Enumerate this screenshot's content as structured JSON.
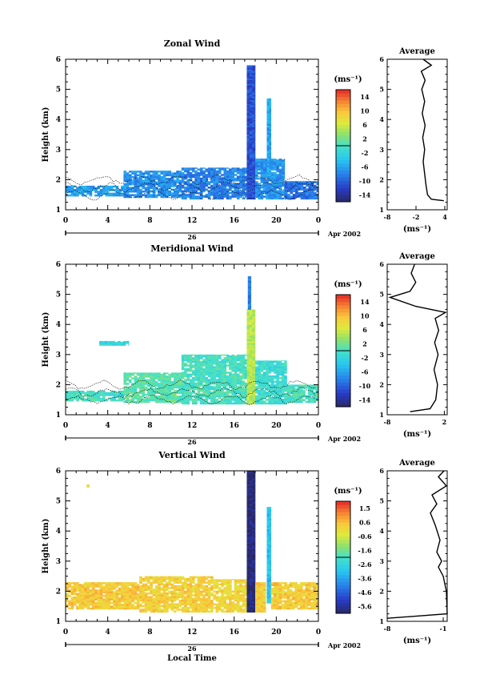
{
  "chart_data": [
    {
      "type": "heatmap",
      "title": "Zonal Wind",
      "ylabel": "Height (km)",
      "xlabel": "",
      "date_label": "26",
      "month_label": "Apr 2002",
      "x_ticks": [
        "0",
        "4",
        "8",
        "12",
        "16",
        "20",
        "0"
      ],
      "y_ticks": [
        "1",
        "2",
        "3",
        "4",
        "5",
        "6"
      ],
      "xlim": [
        0,
        24
      ],
      "ylim": [
        1,
        6
      ],
      "colorbar": {
        "unit": "(ms⁻¹)",
        "ticks": [
          "14",
          "10",
          "6",
          "2",
          "-2",
          "-6",
          "-10",
          "-14"
        ],
        "range": [
          -16,
          16
        ]
      },
      "coverage": [
        {
          "x0": 0.0,
          "x1": 5.5,
          "y0": 1.45,
          "y1": 1.8,
          "value": -6
        },
        {
          "x0": 5.5,
          "x1": 11.0,
          "y0": 1.4,
          "y1": 2.3,
          "value": -7
        },
        {
          "x0": 11.0,
          "x1": 17.2,
          "y0": 1.35,
          "y1": 2.4,
          "value": -8
        },
        {
          "x0": 17.2,
          "x1": 18.0,
          "y0": 1.35,
          "y1": 5.8,
          "value": -11
        },
        {
          "x0": 18.0,
          "x1": 20.8,
          "y0": 1.35,
          "y1": 2.7,
          "value": -7
        },
        {
          "x0": 19.1,
          "x1": 19.5,
          "y0": 2.0,
          "y1": 4.7,
          "value": -6
        },
        {
          "x0": 20.8,
          "x1": 24.0,
          "y0": 1.35,
          "y1": 1.95,
          "value": -9
        }
      ],
      "average": {
        "title": "Average",
        "xlabel": "(ms⁻¹)",
        "x_ticks": [
          "-8",
          "-2",
          "4"
        ],
        "xlim": [
          -8,
          4.5
        ],
        "ylim": [
          1,
          6
        ],
        "profile": [
          [
            3.8,
            1.3
          ],
          [
            1.2,
            1.35
          ],
          [
            0.4,
            1.5
          ],
          [
            0.1,
            1.8
          ],
          [
            -0.2,
            2.2
          ],
          [
            -0.5,
            2.6
          ],
          [
            -0.2,
            3.0
          ],
          [
            -0.6,
            3.4
          ],
          [
            -0.1,
            3.8
          ],
          [
            -0.7,
            4.2
          ],
          [
            -0.2,
            4.6
          ],
          [
            -0.8,
            5.0
          ],
          [
            -0.1,
            5.3
          ],
          [
            -0.9,
            5.6
          ],
          [
            1.2,
            5.8
          ],
          [
            -0.5,
            6.0
          ]
        ]
      }
    },
    {
      "type": "heatmap",
      "title": "Meridional Wind",
      "ylabel": "Height (km)",
      "xlabel": "",
      "date_label": "26",
      "month_label": "Apr 2002",
      "x_ticks": [
        "0",
        "4",
        "8",
        "12",
        "16",
        "20",
        "0"
      ],
      "y_ticks": [
        "1",
        "2",
        "3",
        "4",
        "5",
        "6"
      ],
      "xlim": [
        0,
        24
      ],
      "ylim": [
        1,
        6
      ],
      "colorbar": {
        "unit": "(ms⁻¹)",
        "ticks": [
          "14",
          "10",
          "6",
          "2",
          "-2",
          "-6",
          "-10",
          "-14"
        ],
        "range": [
          -16,
          16
        ]
      },
      "coverage": [
        {
          "x0": 0.0,
          "x1": 5.5,
          "y0": 1.45,
          "y1": 1.8,
          "value": 0
        },
        {
          "x0": 3.2,
          "x1": 6.0,
          "y0": 3.3,
          "y1": 3.45,
          "value": -2
        },
        {
          "x0": 5.5,
          "x1": 11.0,
          "y0": 1.4,
          "y1": 2.4,
          "value": 1
        },
        {
          "x0": 11.0,
          "x1": 17.2,
          "y0": 1.35,
          "y1": 3.0,
          "value": 0
        },
        {
          "x0": 17.2,
          "x1": 18.0,
          "y0": 1.35,
          "y1": 4.5,
          "value": 5
        },
        {
          "x0": 17.3,
          "x1": 17.6,
          "y0": 4.5,
          "y1": 5.6,
          "value": -8
        },
        {
          "x0": 18.0,
          "x1": 21.0,
          "y0": 1.35,
          "y1": 2.8,
          "value": -1
        },
        {
          "x0": 21.0,
          "x1": 24.0,
          "y0": 1.4,
          "y1": 2.0,
          "value": 0
        }
      ],
      "average": {
        "title": "Average",
        "xlabel": "(ms⁻¹)",
        "x_ticks": [
          "-8",
          "2"
        ],
        "xlim": [
          -8,
          2.5
        ],
        "ylim": [
          1,
          6
        ],
        "profile": [
          [
            -4.0,
            1.1
          ],
          [
            -0.5,
            1.2
          ],
          [
            0.5,
            1.5
          ],
          [
            0.8,
            2.0
          ],
          [
            0.2,
            2.5
          ],
          [
            0.9,
            3.0
          ],
          [
            0.3,
            3.4
          ],
          [
            1.0,
            3.8
          ],
          [
            0.4,
            4.2
          ],
          [
            2.2,
            4.4
          ],
          [
            -3.0,
            4.6
          ],
          [
            -7.5,
            4.9
          ],
          [
            -4.0,
            5.1
          ],
          [
            -3.0,
            5.4
          ],
          [
            -3.8,
            5.7
          ],
          [
            -3.2,
            6.0
          ]
        ]
      }
    },
    {
      "type": "heatmap",
      "title": "Vertical Wind",
      "ylabel": "Height (km)",
      "xlabel": "Local Time",
      "date_label": "26",
      "month_label": "Apr 2002",
      "x_ticks": [
        "0",
        "4",
        "8",
        "12",
        "16",
        "20",
        "0"
      ],
      "y_ticks": [
        "1",
        "2",
        "3",
        "4",
        "5",
        "6"
      ],
      "xlim": [
        0,
        24
      ],
      "ylim": [
        1,
        6
      ],
      "colorbar": {
        "unit": "(ms⁻¹)",
        "ticks": [
          "1.5",
          "0.6",
          "-0.6",
          "-1.6",
          "-2.6",
          "-3.6",
          "-4.6",
          "-5.6"
        ],
        "range": [
          -6,
          2
        ]
      },
      "coverage": [
        {
          "x0": 0.0,
          "x1": 7.0,
          "y0": 1.4,
          "y1": 2.3,
          "value": 0.3
        },
        {
          "x0": 7.0,
          "x1": 14.0,
          "y0": 1.3,
          "y1": 2.5,
          "value": 0.2
        },
        {
          "x0": 14.0,
          "x1": 17.2,
          "y0": 1.3,
          "y1": 2.4,
          "value": 0.1
        },
        {
          "x0": 17.2,
          "x1": 18.0,
          "y0": 1.3,
          "y1": 6.0,
          "value": -5.8
        },
        {
          "x0": 18.0,
          "x1": 19.0,
          "y0": 1.3,
          "y1": 2.3,
          "value": 0.2
        },
        {
          "x0": 19.1,
          "x1": 19.5,
          "y0": 1.6,
          "y1": 4.8,
          "value": -3.0
        },
        {
          "x0": 19.5,
          "x1": 24.0,
          "y0": 1.4,
          "y1": 2.3,
          "value": 0.3
        },
        {
          "x0": 2.0,
          "x1": 2.25,
          "y0": 5.45,
          "y1": 5.55,
          "value": 0.3
        }
      ],
      "average": {
        "title": "Average",
        "xlabel": "(ms⁻¹)",
        "x_ticks": [
          "-8",
          "-1"
        ],
        "xlim": [
          -8,
          -0.5
        ],
        "ylim": [
          1,
          6
        ],
        "profile": [
          [
            -8.0,
            1.1
          ],
          [
            -0.5,
            1.25
          ],
          [
            -0.6,
            2.0
          ],
          [
            -1.0,
            2.5
          ],
          [
            -1.6,
            2.8
          ],
          [
            -1.2,
            3.0
          ],
          [
            -1.8,
            3.3
          ],
          [
            -1.4,
            3.7
          ],
          [
            -2.0,
            4.2
          ],
          [
            -2.6,
            4.6
          ],
          [
            -1.8,
            4.9
          ],
          [
            -2.4,
            5.2
          ],
          [
            -0.6,
            5.5
          ],
          [
            -1.6,
            5.8
          ],
          [
            -0.9,
            6.0
          ]
        ]
      }
    }
  ]
}
